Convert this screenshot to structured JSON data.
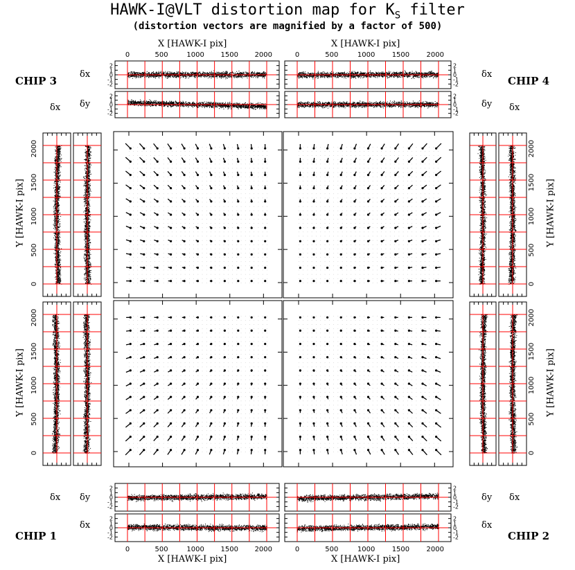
{
  "title": "HAWK-I@VLT distortion map for K",
  "title_sub": "S",
  "title_suffix": " filter",
  "subtitle": "(distortion vectors are magnified by a factor of 500)",
  "labels": {
    "chip1": "CHIP 1",
    "chip2": "CHIP 2",
    "chip3": "CHIP 3",
    "chip4": "CHIP 4",
    "x_axis": "X [HAWK-I pix]",
    "y_axis": "Y [HAWK-I pix]",
    "dx": "δx",
    "dy": "δy"
  },
  "chart_data": {
    "type": "vector-field",
    "title": "HAWK-I@VLT distortion map for Ks filter",
    "subtitle": "(distortion vectors are magnified by a factor of 500)",
    "magnification": 500,
    "xlabel": "X [HAWK-I pix]",
    "ylabel": "Y [HAWK-I pix]",
    "xticks": [
      0,
      500,
      1000,
      1500,
      2000
    ],
    "yticks": [
      0,
      500,
      1000,
      1500,
      2000
    ],
    "residual_ticks": [
      2,
      1,
      0,
      -1,
      -2
    ],
    "residual_labels": [
      "δx",
      "δy"
    ],
    "chips": [
      {
        "name": "CHIP 1",
        "position": "bottom-left",
        "optical_axis": "top-right"
      },
      {
        "name": "CHIP 2",
        "position": "bottom-right",
        "optical_axis": "top-left"
      },
      {
        "name": "CHIP 3",
        "position": "top-left",
        "optical_axis": "bottom-right"
      },
      {
        "name": "CHIP 4",
        "position": "top-right",
        "optical_axis": "bottom-left"
      }
    ],
    "colors": {
      "ink": "#000000",
      "grid": "#ff0000",
      "dots": "#bbbbbb"
    }
  }
}
